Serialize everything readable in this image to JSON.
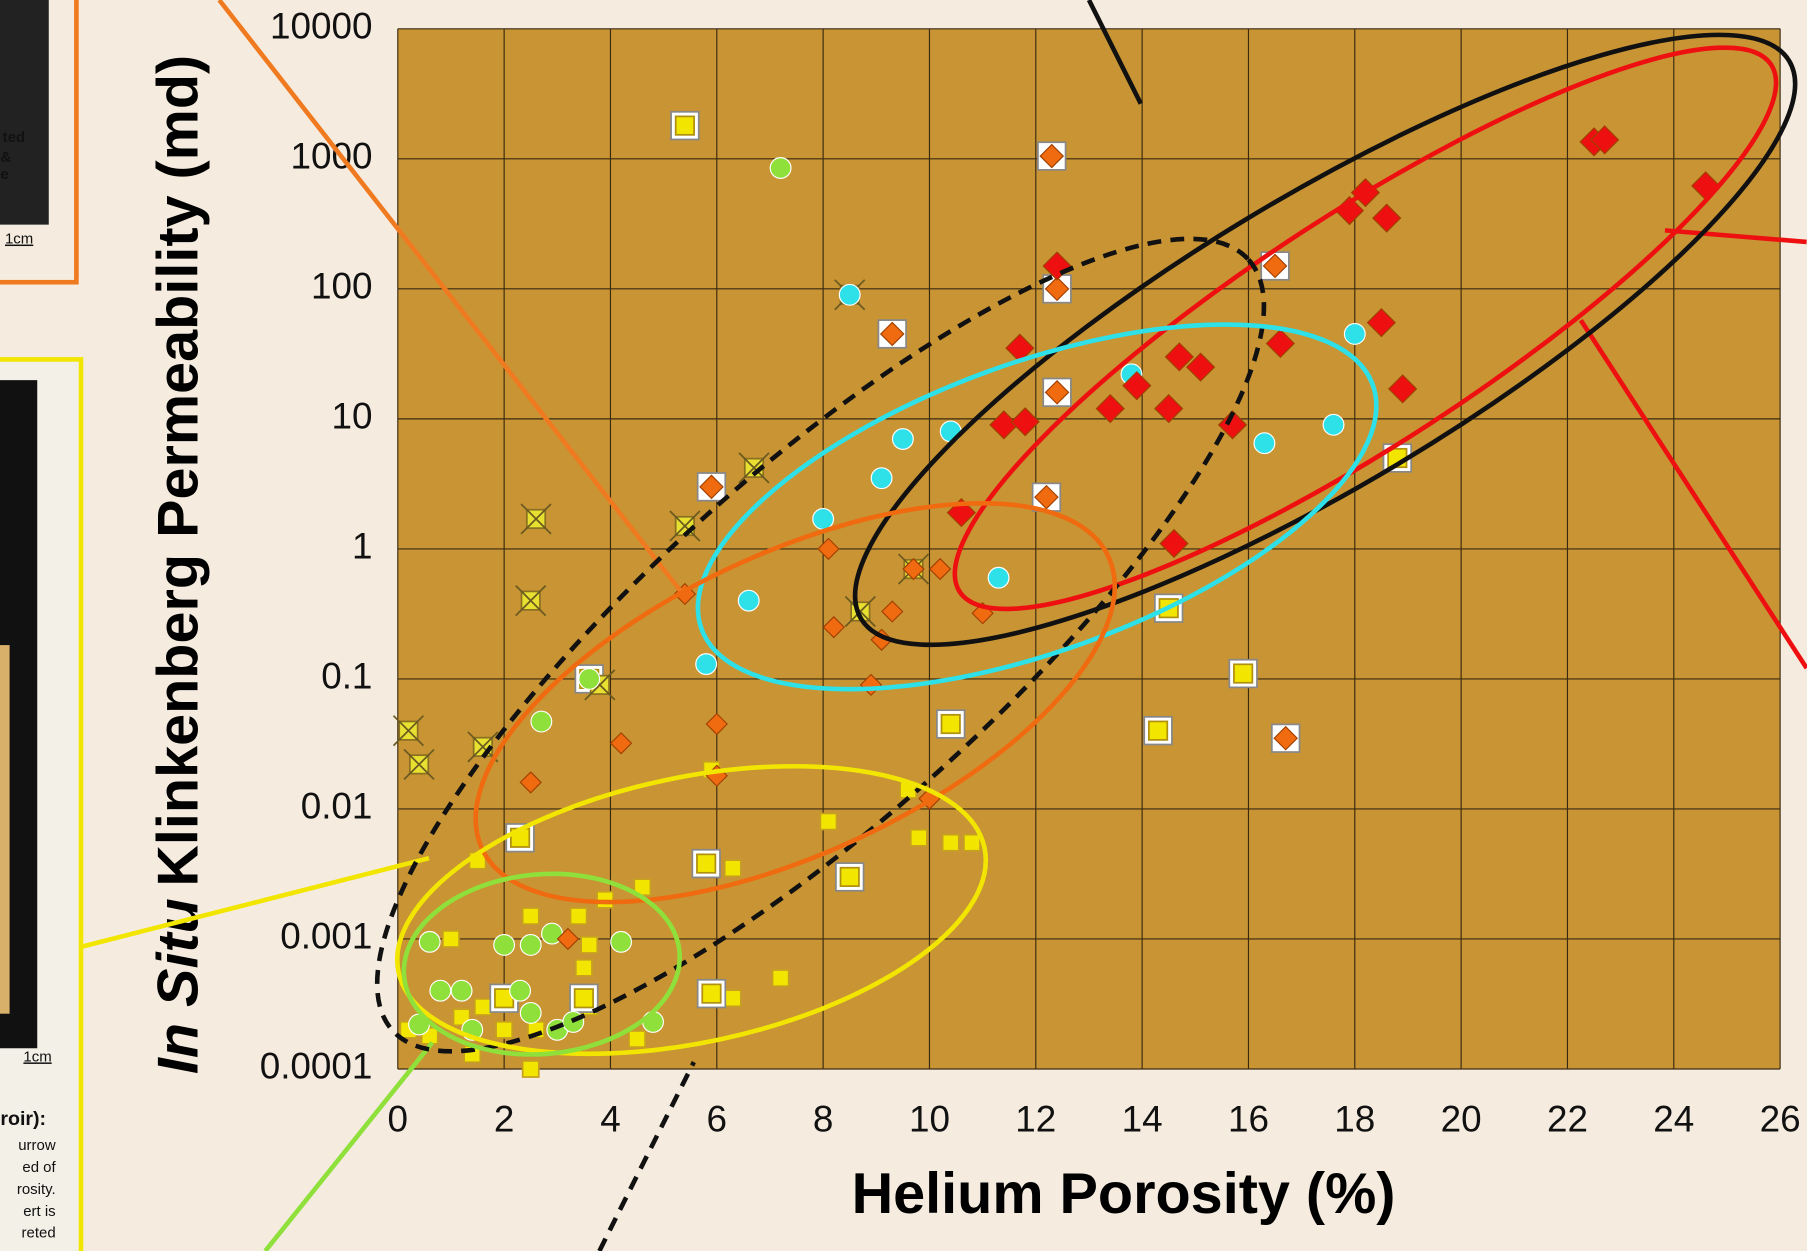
{
  "chart_data": {
    "type": "scatter",
    "xlabel": "Helium Porosity (%)",
    "ylabel": [
      "In Situ",
      "Klinkenberg Permeability (md)"
    ],
    "xlim": [
      0,
      26
    ],
    "xticks": [
      0,
      2,
      4,
      6,
      8,
      10,
      12,
      14,
      16,
      18,
      20,
      22,
      24,
      26
    ],
    "ylim": [
      0.0001,
      10000
    ],
    "yticks": [
      0.0001,
      0.001,
      0.01,
      0.1,
      1,
      10,
      100,
      1000,
      10000
    ],
    "ylog": true,
    "grid": true,
    "background": "#c89434",
    "series": [
      {
        "marker": "square",
        "color": "#f2e600",
        "x": [
          1.0,
          1.5,
          2.0,
          2.5,
          3.4,
          3.5,
          3.6,
          3.9,
          3.6,
          4.6,
          4.5,
          5.9,
          6.3,
          6.3,
          7.2,
          8.1,
          9.6,
          9.8,
          10.4,
          10.8,
          0.2,
          0.6,
          1.2,
          1.4,
          2.5,
          1.6,
          2.6
        ],
        "values": [
          0.001,
          0.004,
          0.0002,
          0.0015,
          0.0015,
          0.0006,
          0.0003,
          0.002,
          0.0009,
          0.0025,
          0.00017,
          0.02,
          0.0035,
          0.00035,
          0.0005,
          0.008,
          0.014,
          0.006,
          0.0055,
          0.0055,
          0.0002,
          0.00018,
          0.00025,
          0.00013,
          0.0001,
          0.0003,
          0.0002
        ]
      },
      {
        "marker": "framed-square",
        "color": "#f2e600",
        "x": [
          5.4,
          14.5,
          18.8,
          15.9,
          14.3,
          10.4,
          8.5,
          5.8,
          2.3,
          2.0,
          3.5,
          5.9,
          3.6
        ],
        "values": [
          1800,
          0.35,
          5,
          0.11,
          0.04,
          0.045,
          0.003,
          0.0038,
          0.006,
          0.00035,
          0.00035,
          0.00038,
          0.1
        ]
      },
      {
        "marker": "crossed-square",
        "color": "#e8e030",
        "x": [
          0.2,
          0.4,
          1.6,
          2.6,
          2.5,
          5.4,
          6.7,
          9.7,
          8.7,
          3.8,
          8.5
        ],
        "values": [
          0.04,
          0.022,
          0.03,
          1.7,
          0.4,
          1.5,
          4.2,
          0.7,
          0.33,
          0.09,
          90
        ]
      },
      {
        "marker": "circle",
        "color": "#8fe03a",
        "x": [
          7.2,
          2.7,
          3.6,
          0.6,
          0.8,
          1.2,
          1.4,
          2.0,
          2.5,
          2.9,
          2.3,
          2.5,
          3.0,
          3.3,
          4.2,
          4.8,
          0.4
        ],
        "values": [
          850,
          0.047,
          0.1,
          0.00095,
          0.0004,
          0.0004,
          0.0002,
          0.0009,
          0.0009,
          0.0011,
          0.0004,
          0.00027,
          0.0002,
          0.00023,
          0.00095,
          0.00023,
          0.00022
        ]
      },
      {
        "marker": "circle",
        "color": "#2ee0e8",
        "x": [
          8.5,
          6.6,
          5.8,
          8.0,
          9.1,
          9.5,
          10.4,
          11.3,
          13.8,
          16.3,
          17.6,
          18.0
        ],
        "values": [
          90,
          0.4,
          0.13,
          1.7,
          3.5,
          7,
          8,
          0.6,
          22,
          6.5,
          9,
          45
        ]
      },
      {
        "marker": "diamond",
        "color": "#f06a10",
        "x": [
          5.4,
          8.1,
          8.2,
          9.1,
          9.3,
          9.7,
          8.9,
          6.0,
          6.0,
          4.2,
          2.5,
          3.2,
          10.0,
          11.0,
          10.2
        ],
        "values": [
          0.45,
          1,
          0.25,
          0.2,
          0.33,
          0.7,
          0.09,
          0.045,
          0.018,
          0.032,
          0.016,
          0.001,
          0.012,
          0.32,
          0.7
        ]
      },
      {
        "marker": "framed-diamond",
        "color": "#f06a10",
        "x": [
          12.3,
          12.4,
          12.4,
          12.2,
          9.3,
          5.9,
          16.5,
          16.7
        ],
        "values": [
          1050,
          100,
          16,
          2.5,
          45,
          3,
          150,
          0.035
        ]
      },
      {
        "marker": "diamond",
        "color": "#ee1010",
        "x": [
          12.4,
          11.7,
          11.4,
          11.8,
          13.4,
          14.5,
          14.7,
          15.1,
          15.7,
          16.6,
          13.9,
          10.6,
          14.6,
          17.9,
          18.2,
          18.6,
          18.5,
          18.9,
          22.5,
          22.7,
          24.6
        ],
        "values": [
          150,
          35,
          9,
          9.5,
          12,
          12,
          30,
          25,
          9,
          38,
          18,
          1.9,
          1.1,
          400,
          550,
          350,
          55,
          17,
          1350,
          1400,
          620
        ]
      }
    ]
  },
  "side_texts": [
    "ted",
    "&",
    "e",
    "1cm",
    "1cm",
    "roir):",
    "urrow",
    "ed of",
    "rosity.",
    "ert is",
    "reted"
  ]
}
